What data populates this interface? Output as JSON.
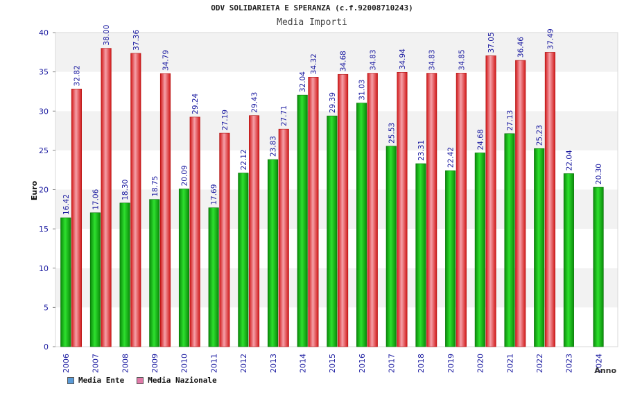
{
  "chart_data": {
    "type": "bar",
    "title": "ODV SOLIDARIETA E SPERANZA (c.f.92008710243)",
    "subtitle": "Media Importi",
    "xlabel": "Anno",
    "ylabel": "Euro",
    "ylim": [
      0,
      40
    ],
    "yticks": [
      0,
      5,
      10,
      15,
      20,
      25,
      30,
      35,
      40
    ],
    "grid": true,
    "legend_position": "bottom-left",
    "categories": [
      "2006",
      "2007",
      "2008",
      "2009",
      "2010",
      "2011",
      "2012",
      "2013",
      "2014",
      "2015",
      "2016",
      "2017",
      "2018",
      "2019",
      "2020",
      "2021",
      "2022",
      "2023",
      "2024"
    ],
    "series": [
      {
        "name": "Media Ente",
        "legend_color": "#5a9bd8",
        "bar_color": "#16b516",
        "values": [
          16.42,
          17.06,
          18.3,
          18.75,
          20.09,
          17.69,
          22.12,
          23.83,
          32.04,
          29.39,
          31.03,
          25.53,
          23.31,
          22.42,
          24.68,
          27.13,
          25.23,
          22.04,
          20.3
        ],
        "labels": [
          "16.42",
          "17.06",
          "18.30",
          "18.75",
          "20.09",
          "17.69",
          "22.12",
          "23.83",
          "32.04",
          "29.39",
          "31.03",
          "25.53",
          "23.31",
          "22.42",
          "24.68",
          "27.13",
          "25.23",
          "22.04",
          "20.30"
        ]
      },
      {
        "name": "Media Nazionale",
        "legend_color": "#e07aa8",
        "bar_color": "#e82a2a",
        "values": [
          32.82,
          38.0,
          37.36,
          34.79,
          29.24,
          27.19,
          29.43,
          27.71,
          34.32,
          34.68,
          34.83,
          34.94,
          34.83,
          34.85,
          37.05,
          36.46,
          37.49,
          null,
          null
        ],
        "labels": [
          "32.82",
          "38.00",
          "37.36",
          "34.79",
          "29.24",
          "27.19",
          "29.43",
          "27.71",
          "34.32",
          "34.68",
          "34.83",
          "34.94",
          "34.83",
          "34.85",
          "37.05",
          "36.46",
          "37.49",
          null,
          null
        ]
      }
    ],
    "colors": {
      "axis_text": "#1a1aa0",
      "band_light": "#f2f2f2",
      "band_white": "#ffffff",
      "value_label": "#1a1aa0"
    }
  }
}
